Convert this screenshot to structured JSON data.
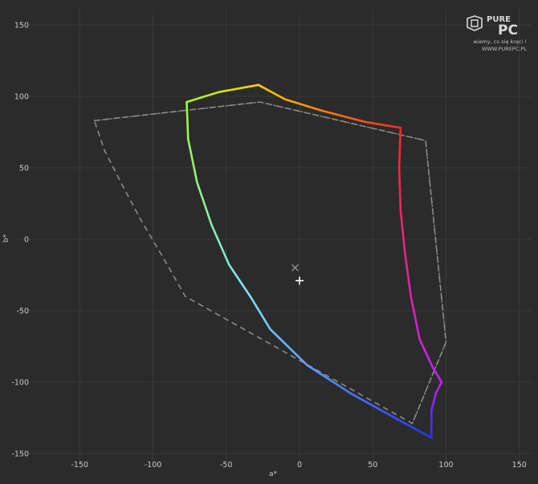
{
  "watermark": {
    "brand_top": "PURE",
    "brand_bottom": "PC",
    "tagline": "wiemy, co się kręci !",
    "site": "WWW.PUREPC.PL"
  },
  "chart_data": {
    "type": "line",
    "title": "",
    "xlabel": "a*",
    "ylabel": "b*",
    "xlim": [
      -195,
      155
    ],
    "ylim": [
      -150,
      155
    ],
    "xticks": [
      -150,
      -100,
      -50,
      0,
      50,
      100,
      150
    ],
    "yticks": [
      150,
      100,
      50,
      0,
      -50,
      -100,
      -150
    ],
    "grid": true,
    "series": [
      {
        "style": "solid-hue-gradient",
        "segments": [
          {
            "color": "#ff2a1a",
            "points": [
              [
                69,
                78
              ],
              [
                68,
                50
              ],
              [
                69,
                20
              ],
              [
                72,
                -10
              ],
              [
                76,
                -40
              ],
              [
                82,
                -70
              ],
              [
                91,
                -90
              ],
              [
                97,
                -100
              ]
            ]
          },
          {
            "color": "#c81eff",
            "points": [
              [
                97,
                -100
              ],
              [
                93,
                -108
              ],
              [
                90,
                -120
              ],
              [
                90,
                -139
              ]
            ]
          },
          {
            "color": "#2233ff",
            "points": [
              [
                90,
                -139
              ],
              [
                65,
                -125
              ],
              [
                35,
                -108
              ],
              [
                5,
                -88
              ],
              [
                -20,
                -63
              ],
              [
                -33,
                -41
              ]
            ]
          },
          {
            "color": "#7be0ff",
            "points": [
              [
                -33,
                -41
              ],
              [
                -48,
                -18
              ],
              [
                -60,
                10
              ],
              [
                -70,
                40
              ],
              [
                -76,
                70
              ],
              [
                -77,
                96
              ]
            ]
          },
          {
            "color": "#9bff2b",
            "points": [
              [
                -77,
                96
              ],
              [
                -55,
                103
              ],
              [
                -28,
                108
              ]
            ]
          },
          {
            "color": "#ffcc00",
            "points": [
              [
                -28,
                108
              ],
              [
                -10,
                98
              ],
              [
                15,
                90
              ],
              [
                45,
                82
              ],
              [
                69,
                78
              ]
            ]
          }
        ]
      },
      {
        "style": "dashed",
        "color": "#8a8a8a",
        "points": [
          [
            -140,
            83
          ],
          [
            -27,
            96
          ],
          [
            86,
            69
          ],
          [
            100,
            -72
          ],
          [
            77,
            -129
          ],
          [
            -78,
            -40
          ],
          [
            -93,
            -13
          ],
          [
            -108,
            13
          ],
          [
            -122,
            40
          ],
          [
            -133,
            62
          ],
          [
            -140,
            83
          ]
        ]
      },
      {
        "style": "dotted",
        "color": "#8a8a8a",
        "points": [
          [
            -140,
            83
          ],
          [
            -27,
            96
          ],
          [
            86,
            69
          ],
          [
            100,
            -72
          ],
          [
            77,
            -129
          ]
        ]
      }
    ],
    "markers": [
      {
        "symbol": "x",
        "x": -3,
        "y": -20,
        "color": "#9a9a9a"
      },
      {
        "symbol": "plus",
        "x": 0,
        "y": -29,
        "color": "#ffffff"
      }
    ]
  }
}
